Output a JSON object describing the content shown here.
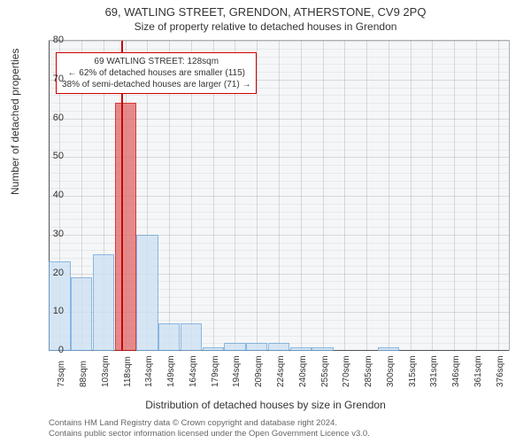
{
  "chart": {
    "type": "histogram",
    "title": "69, WATLING STREET, GRENDON, ATHERSTONE, CV9 2PQ",
    "subtitle": "Size of property relative to detached houses in Grendon",
    "xlabel": "Distribution of detached houses by size in Grendon",
    "ylabel": "Number of detached properties",
    "ylim": [
      0,
      80
    ],
    "ytick_step": 10,
    "y_minor_step": 2,
    "background_color": "#f5f6f7",
    "grid_color": "rgba(0,0,0,0.12)",
    "axis_color": "#555555",
    "bar_fill": "#cfe2f3",
    "bar_border": "#6fa8dc",
    "bar_opacity": 0.8,
    "highlight_fill": "#e06666",
    "highlight_border": "#cc0000",
    "categories": [
      "73sqm",
      "88sqm",
      "103sqm",
      "118sqm",
      "134sqm",
      "149sqm",
      "164sqm",
      "179sqm",
      "194sqm",
      "209sqm",
      "224sqm",
      "240sqm",
      "255sqm",
      "270sqm",
      "285sqm",
      "300sqm",
      "315sqm",
      "331sqm",
      "346sqm",
      "361sqm",
      "376sqm"
    ],
    "values": [
      23,
      19,
      25,
      64,
      30,
      7,
      7,
      1,
      2,
      2,
      2,
      1,
      1,
      0,
      0,
      1,
      0,
      0,
      0,
      0,
      0
    ],
    "highlight_index": 3,
    "highlight_line_color": "#cc0000",
    "annotation": {
      "lines": [
        "69 WATLING STREET: 128sqm",
        "← 62% of detached houses are smaller (115)",
        "38% of semi-detached houses are larger (71) →"
      ],
      "border_color": "#cc0000"
    },
    "footer_lines": [
      "Contains HM Land Registry data © Crown copyright and database right 2024.",
      "Contains public sector information licensed under the Open Government Licence v3.0."
    ]
  }
}
